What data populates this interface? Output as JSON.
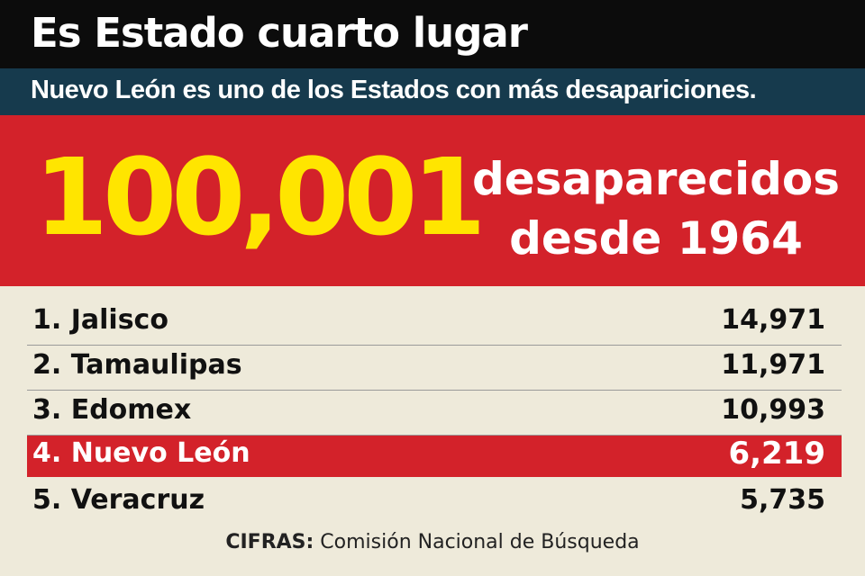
{
  "header": {
    "title": "Es Estado cuarto lugar"
  },
  "subheader": {
    "text": "Nuevo León es uno de los Estados con más desapariciones."
  },
  "hero": {
    "number": "100,001",
    "line1": "desaparecidos",
    "line2": "desde 1964"
  },
  "chart_data": {
    "type": "table",
    "title": "Es Estado cuarto lugar",
    "subtitle": "Nuevo León es uno de los Estados con más desapariciones.",
    "rows": [
      {
        "label": "1. Jalisco",
        "value": "14,971",
        "highlight": false
      },
      {
        "label": "2. Tamaulipas",
        "value": "11,971",
        "highlight": false
      },
      {
        "label": "3. Edomex",
        "value": "10,993",
        "highlight": false
      },
      {
        "label": "4. Nuevo León",
        "value": "6,219",
        "highlight": true
      },
      {
        "label": "5. Veracruz",
        "value": "5,735",
        "highlight": false
      }
    ],
    "values": [
      14971,
      11971,
      10993,
      6219,
      5735
    ]
  },
  "source": {
    "label": "CIFRAS:",
    "text": " Comisión Nacional de Búsqueda"
  },
  "colors": {
    "header_bg": "#0c0c0c",
    "subheader_bg": "#163a4d",
    "accent_red": "#d3222a",
    "accent_yellow": "#ffe500",
    "page_bg": "#eeeada"
  }
}
